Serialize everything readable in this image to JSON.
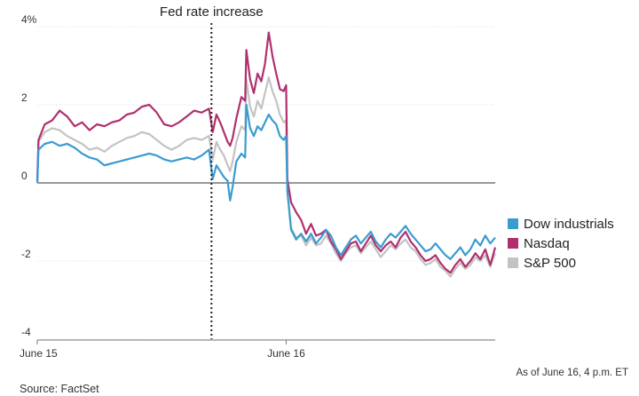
{
  "chart_data": {
    "type": "line",
    "title": "",
    "xlabel": "",
    "ylabel": "",
    "unit": "%",
    "ylim": [
      -4,
      4
    ],
    "y_ticks": [
      {
        "value": 4,
        "label": "4%"
      },
      {
        "value": 2,
        "label": "2"
      },
      {
        "value": 0,
        "label": "0"
      },
      {
        "value": -2,
        "label": "-2"
      },
      {
        "value": -4,
        "label": "-4"
      }
    ],
    "x_ticks": [
      {
        "position": 0,
        "label": "June 15"
      },
      {
        "position": 1,
        "label": "June 16"
      }
    ],
    "grid": true,
    "legend_position": "right",
    "annotation": {
      "text": "Fed rate increase",
      "x": 0.7
    },
    "series": [
      {
        "name": "Dow industrials",
        "color": "#3a9bd0",
        "points": [
          [
            0,
            0
          ],
          [
            0.005,
            0.85
          ],
          [
            0.03,
            1.0
          ],
          [
            0.06,
            1.05
          ],
          [
            0.09,
            0.95
          ],
          [
            0.12,
            1.0
          ],
          [
            0.15,
            0.9
          ],
          [
            0.18,
            0.75
          ],
          [
            0.21,
            0.65
          ],
          [
            0.24,
            0.6
          ],
          [
            0.27,
            0.45
          ],
          [
            0.3,
            0.5
          ],
          [
            0.33,
            0.55
          ],
          [
            0.36,
            0.6
          ],
          [
            0.39,
            0.65
          ],
          [
            0.42,
            0.7
          ],
          [
            0.45,
            0.75
          ],
          [
            0.48,
            0.7
          ],
          [
            0.51,
            0.6
          ],
          [
            0.54,
            0.55
          ],
          [
            0.57,
            0.6
          ],
          [
            0.6,
            0.65
          ],
          [
            0.63,
            0.6
          ],
          [
            0.66,
            0.7
          ],
          [
            0.69,
            0.85
          ],
          [
            0.705,
            0.1
          ],
          [
            0.72,
            0.45
          ],
          [
            0.735,
            0.3
          ],
          [
            0.75,
            0.15
          ],
          [
            0.765,
            0.05
          ],
          [
            0.775,
            -0.45
          ],
          [
            0.785,
            -0.1
          ],
          [
            0.8,
            0.55
          ],
          [
            0.82,
            0.75
          ],
          [
            0.835,
            0.65
          ],
          [
            0.84,
            2.0
          ],
          [
            0.855,
            1.4
          ],
          [
            0.87,
            1.2
          ],
          [
            0.885,
            1.45
          ],
          [
            0.9,
            1.35
          ],
          [
            0.915,
            1.55
          ],
          [
            0.93,
            1.75
          ],
          [
            0.945,
            1.6
          ],
          [
            0.96,
            1.5
          ],
          [
            0.975,
            1.2
          ],
          [
            0.99,
            1.1
          ],
          [
            1.0,
            1.2
          ],
          [
            1.005,
            -0.2
          ],
          [
            1.02,
            -1.2
          ],
          [
            1.04,
            -1.45
          ],
          [
            1.06,
            -1.3
          ],
          [
            1.08,
            -1.5
          ],
          [
            1.1,
            -1.3
          ],
          [
            1.12,
            -1.55
          ],
          [
            1.14,
            -1.4
          ],
          [
            1.16,
            -1.2
          ],
          [
            1.18,
            -1.35
          ],
          [
            1.2,
            -1.65
          ],
          [
            1.22,
            -1.85
          ],
          [
            1.24,
            -1.65
          ],
          [
            1.26,
            -1.45
          ],
          [
            1.28,
            -1.35
          ],
          [
            1.3,
            -1.55
          ],
          [
            1.32,
            -1.4
          ],
          [
            1.34,
            -1.25
          ],
          [
            1.36,
            -1.5
          ],
          [
            1.38,
            -1.65
          ],
          [
            1.4,
            -1.45
          ],
          [
            1.42,
            -1.3
          ],
          [
            1.44,
            -1.4
          ],
          [
            1.46,
            -1.25
          ],
          [
            1.48,
            -1.1
          ],
          [
            1.5,
            -1.3
          ],
          [
            1.52,
            -1.45
          ],
          [
            1.54,
            -1.6
          ],
          [
            1.56,
            -1.75
          ],
          [
            1.58,
            -1.7
          ],
          [
            1.6,
            -1.55
          ],
          [
            1.62,
            -1.7
          ],
          [
            1.64,
            -1.85
          ],
          [
            1.66,
            -1.95
          ],
          [
            1.68,
            -1.8
          ],
          [
            1.7,
            -1.65
          ],
          [
            1.72,
            -1.85
          ],
          [
            1.74,
            -1.7
          ],
          [
            1.76,
            -1.45
          ],
          [
            1.78,
            -1.6
          ],
          [
            1.8,
            -1.35
          ],
          [
            1.82,
            -1.55
          ],
          [
            1.84,
            -1.4
          ]
        ]
      },
      {
        "name": "Nasdaq",
        "color": "#b0306e",
        "points": [
          [
            0,
            0.05
          ],
          [
            0.005,
            1.1
          ],
          [
            0.03,
            1.5
          ],
          [
            0.06,
            1.6
          ],
          [
            0.09,
            1.85
          ],
          [
            0.12,
            1.7
          ],
          [
            0.15,
            1.45
          ],
          [
            0.18,
            1.55
          ],
          [
            0.21,
            1.35
          ],
          [
            0.24,
            1.5
          ],
          [
            0.27,
            1.45
          ],
          [
            0.3,
            1.55
          ],
          [
            0.33,
            1.6
          ],
          [
            0.36,
            1.75
          ],
          [
            0.39,
            1.8
          ],
          [
            0.42,
            1.95
          ],
          [
            0.45,
            2.0
          ],
          [
            0.48,
            1.8
          ],
          [
            0.51,
            1.5
          ],
          [
            0.54,
            1.45
          ],
          [
            0.57,
            1.55
          ],
          [
            0.6,
            1.7
          ],
          [
            0.63,
            1.85
          ],
          [
            0.66,
            1.8
          ],
          [
            0.69,
            1.9
          ],
          [
            0.705,
            1.3
          ],
          [
            0.72,
            1.75
          ],
          [
            0.735,
            1.55
          ],
          [
            0.75,
            1.3
          ],
          [
            0.765,
            1.05
          ],
          [
            0.775,
            0.95
          ],
          [
            0.785,
            1.15
          ],
          [
            0.8,
            1.65
          ],
          [
            0.82,
            2.2
          ],
          [
            0.835,
            2.1
          ],
          [
            0.84,
            3.4
          ],
          [
            0.855,
            2.65
          ],
          [
            0.87,
            2.3
          ],
          [
            0.885,
            2.8
          ],
          [
            0.9,
            2.6
          ],
          [
            0.915,
            3.05
          ],
          [
            0.93,
            3.85
          ],
          [
            0.945,
            3.25
          ],
          [
            0.96,
            2.8
          ],
          [
            0.975,
            2.4
          ],
          [
            0.99,
            2.35
          ],
          [
            1.0,
            2.5
          ],
          [
            1.005,
            0.1
          ],
          [
            1.02,
            -0.5
          ],
          [
            1.04,
            -0.75
          ],
          [
            1.06,
            -0.95
          ],
          [
            1.08,
            -1.3
          ],
          [
            1.1,
            -1.05
          ],
          [
            1.12,
            -1.35
          ],
          [
            1.14,
            -1.3
          ],
          [
            1.16,
            -1.2
          ],
          [
            1.18,
            -1.5
          ],
          [
            1.2,
            -1.7
          ],
          [
            1.22,
            -1.95
          ],
          [
            1.24,
            -1.75
          ],
          [
            1.26,
            -1.55
          ],
          [
            1.28,
            -1.5
          ],
          [
            1.3,
            -1.75
          ],
          [
            1.32,
            -1.55
          ],
          [
            1.34,
            -1.35
          ],
          [
            1.36,
            -1.6
          ],
          [
            1.38,
            -1.75
          ],
          [
            1.4,
            -1.6
          ],
          [
            1.42,
            -1.5
          ],
          [
            1.44,
            -1.65
          ],
          [
            1.46,
            -1.4
          ],
          [
            1.48,
            -1.25
          ],
          [
            1.5,
            -1.5
          ],
          [
            1.52,
            -1.65
          ],
          [
            1.54,
            -1.85
          ],
          [
            1.56,
            -2.0
          ],
          [
            1.58,
            -1.95
          ],
          [
            1.6,
            -1.85
          ],
          [
            1.62,
            -2.05
          ],
          [
            1.64,
            -2.2
          ],
          [
            1.66,
            -2.3
          ],
          [
            1.68,
            -2.1
          ],
          [
            1.7,
            -1.95
          ],
          [
            1.72,
            -2.15
          ],
          [
            1.74,
            -2.0
          ],
          [
            1.76,
            -1.8
          ],
          [
            1.78,
            -1.95
          ],
          [
            1.8,
            -1.7
          ],
          [
            1.82,
            -2.1
          ],
          [
            1.84,
            -1.65
          ]
        ]
      },
      {
        "name": "S&P 500",
        "color": "#c3c3c3",
        "points": [
          [
            0,
            0.05
          ],
          [
            0.005,
            1.05
          ],
          [
            0.03,
            1.3
          ],
          [
            0.06,
            1.4
          ],
          [
            0.09,
            1.35
          ],
          [
            0.12,
            1.2
          ],
          [
            0.15,
            1.1
          ],
          [
            0.18,
            1.0
          ],
          [
            0.21,
            0.85
          ],
          [
            0.24,
            0.9
          ],
          [
            0.27,
            0.8
          ],
          [
            0.3,
            0.95
          ],
          [
            0.33,
            1.05
          ],
          [
            0.36,
            1.15
          ],
          [
            0.39,
            1.2
          ],
          [
            0.42,
            1.3
          ],
          [
            0.45,
            1.25
          ],
          [
            0.48,
            1.1
          ],
          [
            0.51,
            0.95
          ],
          [
            0.54,
            0.85
          ],
          [
            0.57,
            0.95
          ],
          [
            0.6,
            1.1
          ],
          [
            0.63,
            1.15
          ],
          [
            0.66,
            1.1
          ],
          [
            0.69,
            1.2
          ],
          [
            0.705,
            0.6
          ],
          [
            0.72,
            1.05
          ],
          [
            0.735,
            0.85
          ],
          [
            0.75,
            0.7
          ],
          [
            0.765,
            0.45
          ],
          [
            0.775,
            0.3
          ],
          [
            0.785,
            0.55
          ],
          [
            0.8,
            1.05
          ],
          [
            0.82,
            1.45
          ],
          [
            0.835,
            1.35
          ],
          [
            0.84,
            2.65
          ],
          [
            0.855,
            1.95
          ],
          [
            0.87,
            1.7
          ],
          [
            0.885,
            2.1
          ],
          [
            0.9,
            1.9
          ],
          [
            0.915,
            2.3
          ],
          [
            0.93,
            2.7
          ],
          [
            0.945,
            2.35
          ],
          [
            0.96,
            2.1
          ],
          [
            0.975,
            1.75
          ],
          [
            0.99,
            1.55
          ],
          [
            1.0,
            1.6
          ],
          [
            1.005,
            -0.25
          ],
          [
            1.02,
            -1.15
          ],
          [
            1.04,
            -1.4
          ],
          [
            1.06,
            -1.35
          ],
          [
            1.08,
            -1.6
          ],
          [
            1.1,
            -1.4
          ],
          [
            1.12,
            -1.6
          ],
          [
            1.14,
            -1.55
          ],
          [
            1.16,
            -1.35
          ],
          [
            1.18,
            -1.55
          ],
          [
            1.2,
            -1.8
          ],
          [
            1.22,
            -2.0
          ],
          [
            1.24,
            -1.8
          ],
          [
            1.26,
            -1.65
          ],
          [
            1.28,
            -1.6
          ],
          [
            1.3,
            -1.8
          ],
          [
            1.32,
            -1.65
          ],
          [
            1.34,
            -1.5
          ],
          [
            1.36,
            -1.7
          ],
          [
            1.38,
            -1.9
          ],
          [
            1.4,
            -1.75
          ],
          [
            1.42,
            -1.6
          ],
          [
            1.44,
            -1.7
          ],
          [
            1.46,
            -1.55
          ],
          [
            1.48,
            -1.45
          ],
          [
            1.5,
            -1.65
          ],
          [
            1.52,
            -1.75
          ],
          [
            1.54,
            -1.95
          ],
          [
            1.56,
            -2.1
          ],
          [
            1.58,
            -2.05
          ],
          [
            1.6,
            -1.95
          ],
          [
            1.62,
            -2.15
          ],
          [
            1.64,
            -2.25
          ],
          [
            1.66,
            -2.4
          ],
          [
            1.68,
            -2.2
          ],
          [
            1.7,
            -2.05
          ],
          [
            1.72,
            -2.2
          ],
          [
            1.74,
            -2.1
          ],
          [
            1.76,
            -1.9
          ],
          [
            1.78,
            -2.0
          ],
          [
            1.8,
            -1.85
          ],
          [
            1.82,
            -2.15
          ],
          [
            1.84,
            -1.8
          ]
        ]
      }
    ]
  },
  "note": "As of June 16, 4 p.m. ET",
  "source": "Source: FactSet"
}
